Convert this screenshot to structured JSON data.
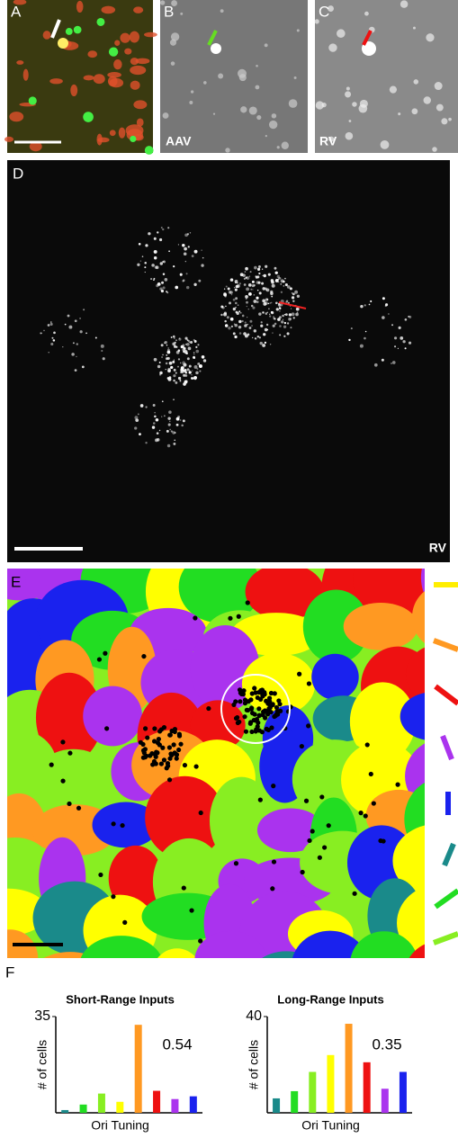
{
  "panel_labels": [
    "A",
    "B",
    "C",
    "D",
    "E",
    "F"
  ],
  "image_labels": {
    "B": "AAV",
    "C": "RV",
    "D": "RV"
  },
  "chart_data": [
    {
      "type": "bar",
      "title": "Short-Range Inputs",
      "y_label": "# of cells",
      "x_label": "Ori Tuning",
      "annotation": "0.54",
      "categories": [
        null,
        null,
        null,
        null,
        null,
        null,
        null,
        null
      ],
      "values": [
        1,
        3,
        7,
        4,
        32,
        8,
        5,
        6
      ],
      "colors": [
        "#1a8a8a",
        "#22dd22",
        "#88ee22",
        "#ffff00",
        "#ff9922",
        "#ee1111",
        "#aa33ee",
        "#1a22ee"
      ],
      "ylim": [
        0,
        35
      ],
      "yticks": [
        35
      ]
    },
    {
      "type": "bar",
      "title": "Long-Range Inputs",
      "y_label": "# of cells",
      "x_label": "Ori Tuning",
      "annotation": "0.35",
      "categories": [
        null,
        null,
        null,
        null,
        null,
        null,
        null,
        null
      ],
      "values": [
        6,
        9,
        17,
        24,
        37,
        21,
        10,
        17
      ],
      "colors": [
        "#1a8a8a",
        "#22dd22",
        "#88ee22",
        "#ffff00",
        "#ff9922",
        "#ee1111",
        "#aa33ee",
        "#1a22ee"
      ],
      "ylim": [
        0,
        40
      ],
      "yticks": [
        40
      ]
    }
  ]
}
